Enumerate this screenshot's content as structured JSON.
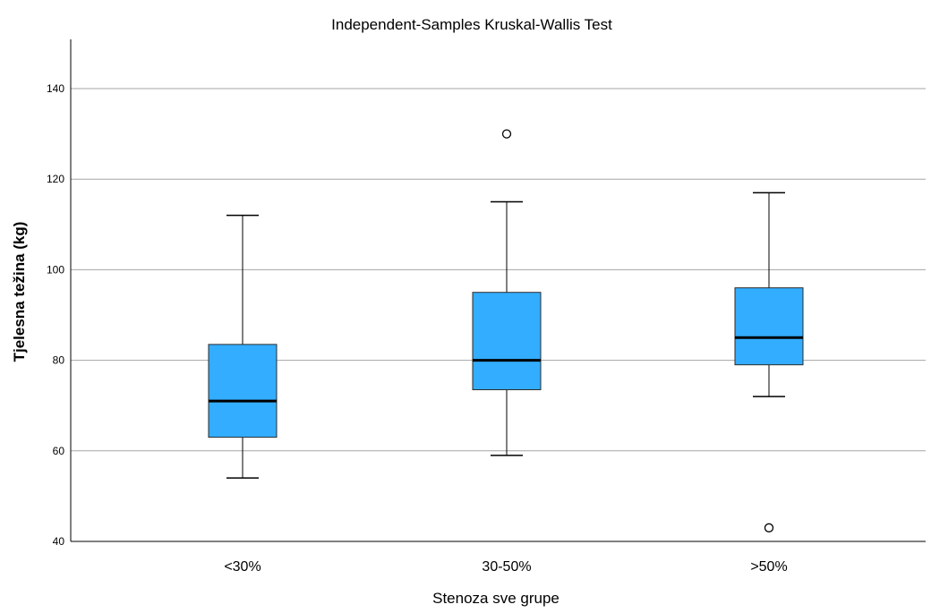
{
  "chart_data": {
    "type": "boxplot",
    "title": "Independent-Samples Kruskal-Wallis Test",
    "xlabel": "Stenoza sve grupe",
    "ylabel": "Tjelesna težina (kg)",
    "ylim": [
      40,
      150
    ],
    "yticks": [
      40,
      60,
      80,
      100,
      120,
      140
    ],
    "grid": true,
    "box_color": "#33adff",
    "categories": [
      "<30%",
      "30-50%",
      ">50%"
    ],
    "boxes": [
      {
        "category": "<30%",
        "whisker_low": 54,
        "q1": 63,
        "median": 71,
        "q3": 83.5,
        "whisker_high": 112,
        "outliers": []
      },
      {
        "category": "30-50%",
        "whisker_low": 59,
        "q1": 73.5,
        "median": 80,
        "q3": 95,
        "whisker_high": 115,
        "outliers": [
          130
        ]
      },
      {
        "category": ">50%",
        "whisker_low": 72,
        "q1": 79,
        "median": 85,
        "q3": 96,
        "whisker_high": 117,
        "outliers": [
          43
        ]
      }
    ]
  }
}
